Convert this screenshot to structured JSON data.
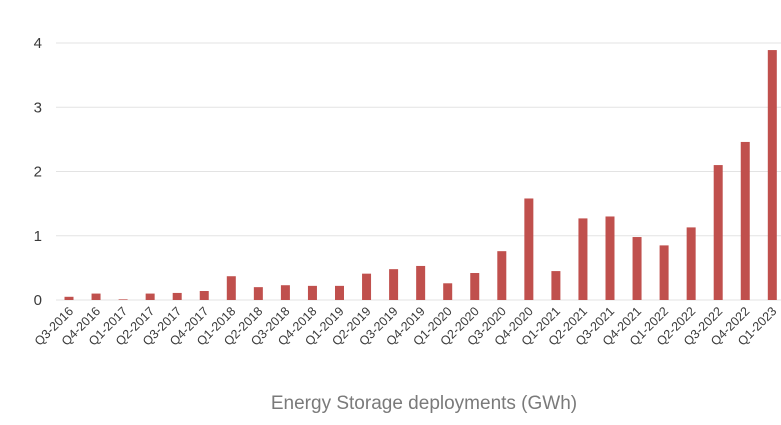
{
  "chart_data": {
    "type": "bar",
    "title": "",
    "xlabel": "Energy Storage deployments (GWh)",
    "ylabel": "",
    "ylim": [
      0,
      4
    ],
    "yticks": [
      0,
      1,
      2,
      3,
      4
    ],
    "grid": true,
    "bar_color": "#c0504d",
    "grid_color": "#e3e3e3",
    "categories": [
      "Q3-2016",
      "Q4-2016",
      "Q1-2017",
      "Q2-2017",
      "Q3-2017",
      "Q4-2017",
      "Q1-2018",
      "Q2-2018",
      "Q3-2018",
      "Q4-2018",
      "Q1-2019",
      "Q2-2019",
      "Q3-2019",
      "Q4-2019",
      "Q1-2020",
      "Q2-2020",
      "Q3-2020",
      "Q4-2020",
      "Q1-2021",
      "Q2-2021",
      "Q3-2021",
      "Q4-2021",
      "Q1-2022",
      "Q2-2022",
      "Q3-2022",
      "Q4-2022",
      "Q1-2023"
    ],
    "values": [
      0.05,
      0.1,
      0.01,
      0.1,
      0.11,
      0.14,
      0.37,
      0.2,
      0.23,
      0.22,
      0.22,
      0.41,
      0.48,
      0.53,
      0.26,
      0.42,
      0.76,
      1.58,
      0.45,
      1.27,
      1.3,
      0.98,
      0.85,
      1.13,
      2.1,
      2.46,
      3.89
    ]
  }
}
